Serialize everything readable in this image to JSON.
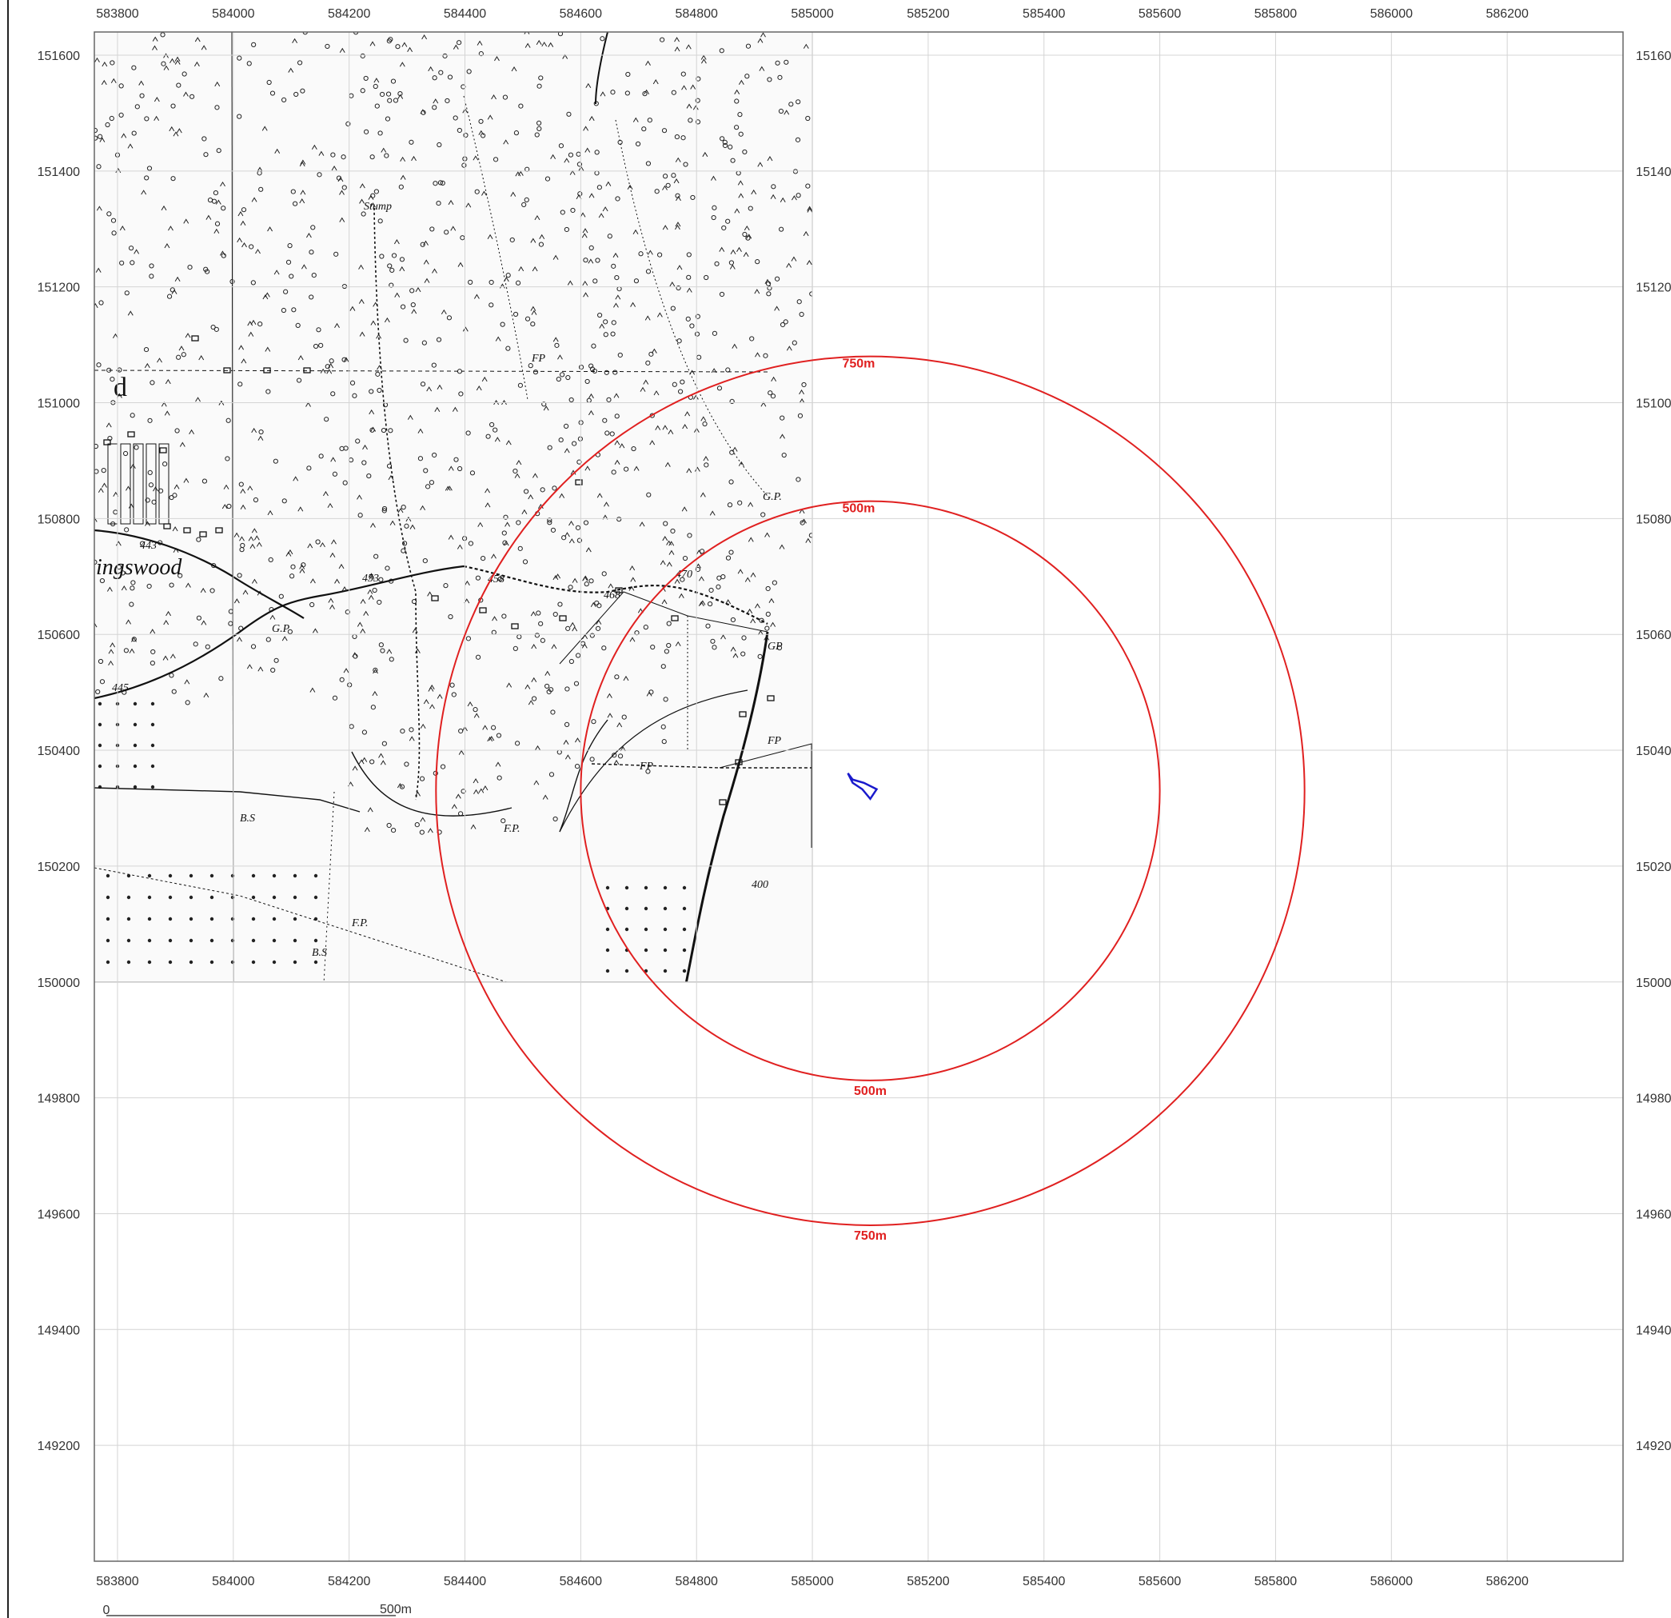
{
  "map": {
    "x_ticks": [
      "583800",
      "584000",
      "584200",
      "584400",
      "584600",
      "584800",
      "585000",
      "585200",
      "585400",
      "585600",
      "585800",
      "586000",
      "586200"
    ],
    "y_ticks": [
      "151600",
      "151400",
      "151200",
      "151000",
      "150800",
      "150600",
      "150400",
      "150200",
      "150000",
      "149800",
      "149600",
      "149400",
      "149200"
    ],
    "right_y_ticks": [
      "15160",
      "15140",
      "15120",
      "15100",
      "15080",
      "15060",
      "15040",
      "15020",
      "15000",
      "14980",
      "14960",
      "14940",
      "14920"
    ],
    "x_range": [
      583760,
      586400
    ],
    "y_range": [
      149000,
      151640
    ],
    "buffer_color": "#e02020",
    "site_color": "#1a1acc",
    "grid_color": "#d4d4d4",
    "buffers": [
      {
        "radius_m": 500,
        "top_label": "500m",
        "bottom_label": "500m"
      },
      {
        "radius_m": 750,
        "top_label": "750m",
        "bottom_label": "750m"
      }
    ],
    "site": {
      "name": "site-boundary",
      "centre": [
        585100,
        150330
      ]
    },
    "basemap": {
      "extent_x": [
        583760,
        585000
      ],
      "extent_y": [
        150000,
        151640
      ],
      "place_name": "ingswood",
      "letter": "d",
      "labels": [
        "Stump",
        "FP",
        "FP",
        "FP",
        "F.P.",
        "F.P.",
        "G.P.",
        "G.P",
        "GP",
        "B.S",
        "B.S",
        "443",
        "445",
        "458",
        "453",
        "468",
        "470",
        "400"
      ]
    },
    "scale_bar": {
      "start": "0",
      "end": "500m"
    }
  }
}
